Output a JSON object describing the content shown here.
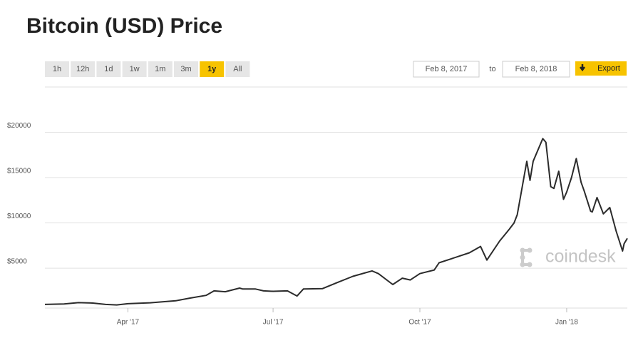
{
  "controls": {
    "ranges": [
      "1h",
      "12h",
      "1d",
      "1w",
      "1m",
      "3m",
      "1y",
      "All"
    ],
    "active_range": "1y",
    "from_date": "Feb 8, 2017",
    "to_label": "to",
    "to_date": "Feb 8, 2018",
    "export": "Export"
  },
  "watermark": "coindesk",
  "chart_data": {
    "type": "line",
    "title": "Bitcoin (USD) Price",
    "color": "#2b2b2b",
    "grid": true,
    "x": [
      "2017-02-08",
      "2017-02-20",
      "2017-03-01",
      "2017-03-10",
      "2017-03-18",
      "2017-03-25",
      "2017-04-01",
      "2017-04-15",
      "2017-05-01",
      "2017-05-10",
      "2017-05-20",
      "2017-05-25",
      "2017-06-01",
      "2017-06-10",
      "2017-06-12",
      "2017-06-20",
      "2017-06-25",
      "2017-07-01",
      "2017-07-10",
      "2017-07-16",
      "2017-07-20",
      "2017-08-01",
      "2017-08-10",
      "2017-08-20",
      "2017-09-01",
      "2017-09-05",
      "2017-09-14",
      "2017-09-20",
      "2017-09-25",
      "2017-10-01",
      "2017-10-10",
      "2017-10-13",
      "2017-10-20",
      "2017-11-01",
      "2017-11-08",
      "2017-11-12",
      "2017-11-20",
      "2017-11-26",
      "2017-11-29",
      "2017-12-01",
      "2017-12-07",
      "2017-12-09",
      "2017-12-11",
      "2017-12-17",
      "2017-12-19",
      "2017-12-22",
      "2017-12-24",
      "2017-12-27",
      "2017-12-30",
      "2018-01-01",
      "2018-01-04",
      "2018-01-07",
      "2018-01-10",
      "2018-01-12",
      "2018-01-16",
      "2018-01-17",
      "2018-01-20",
      "2018-01-24",
      "2018-01-28",
      "2018-02-01",
      "2018-02-05",
      "2018-02-06",
      "2018-02-08"
    ],
    "values": [
      1000,
      1050,
      1200,
      1150,
      1000,
      950,
      1080,
      1180,
      1400,
      1700,
      2000,
      2500,
      2400,
      2800,
      2700,
      2700,
      2500,
      2450,
      2500,
      1930,
      2700,
      2750,
      3400,
      4100,
      4700,
      4400,
      3200,
      3900,
      3700,
      4400,
      4800,
      5600,
      6000,
      6700,
      7400,
      5900,
      8000,
      9300,
      10000,
      10900,
      16800,
      14700,
      16800,
      19300,
      18900,
      14000,
      13800,
      15700,
      12600,
      13400,
      15000,
      17100,
      14500,
      13500,
      11300,
      11200,
      12800,
      11000,
      11700,
      9100,
      6900,
      7700,
      8300
    ],
    "xlim": [
      "2017-02-08",
      "2018-02-08"
    ],
    "xticks": [
      {
        "value": "2017-04-01",
        "label": "Apr '17"
      },
      {
        "value": "2017-07-01",
        "label": "Jul '17"
      },
      {
        "value": "2017-10-01",
        "label": "Oct '17"
      },
      {
        "value": "2018-01-01",
        "label": "Jan '18"
      }
    ],
    "ylim": [
      600,
      25000
    ],
    "yticks": [
      {
        "value": 5000,
        "label": "$5000"
      },
      {
        "value": 10000,
        "label": "$10000"
      },
      {
        "value": 15000,
        "label": "$15000"
      },
      {
        "value": 20000,
        "label": "$20000"
      }
    ]
  }
}
